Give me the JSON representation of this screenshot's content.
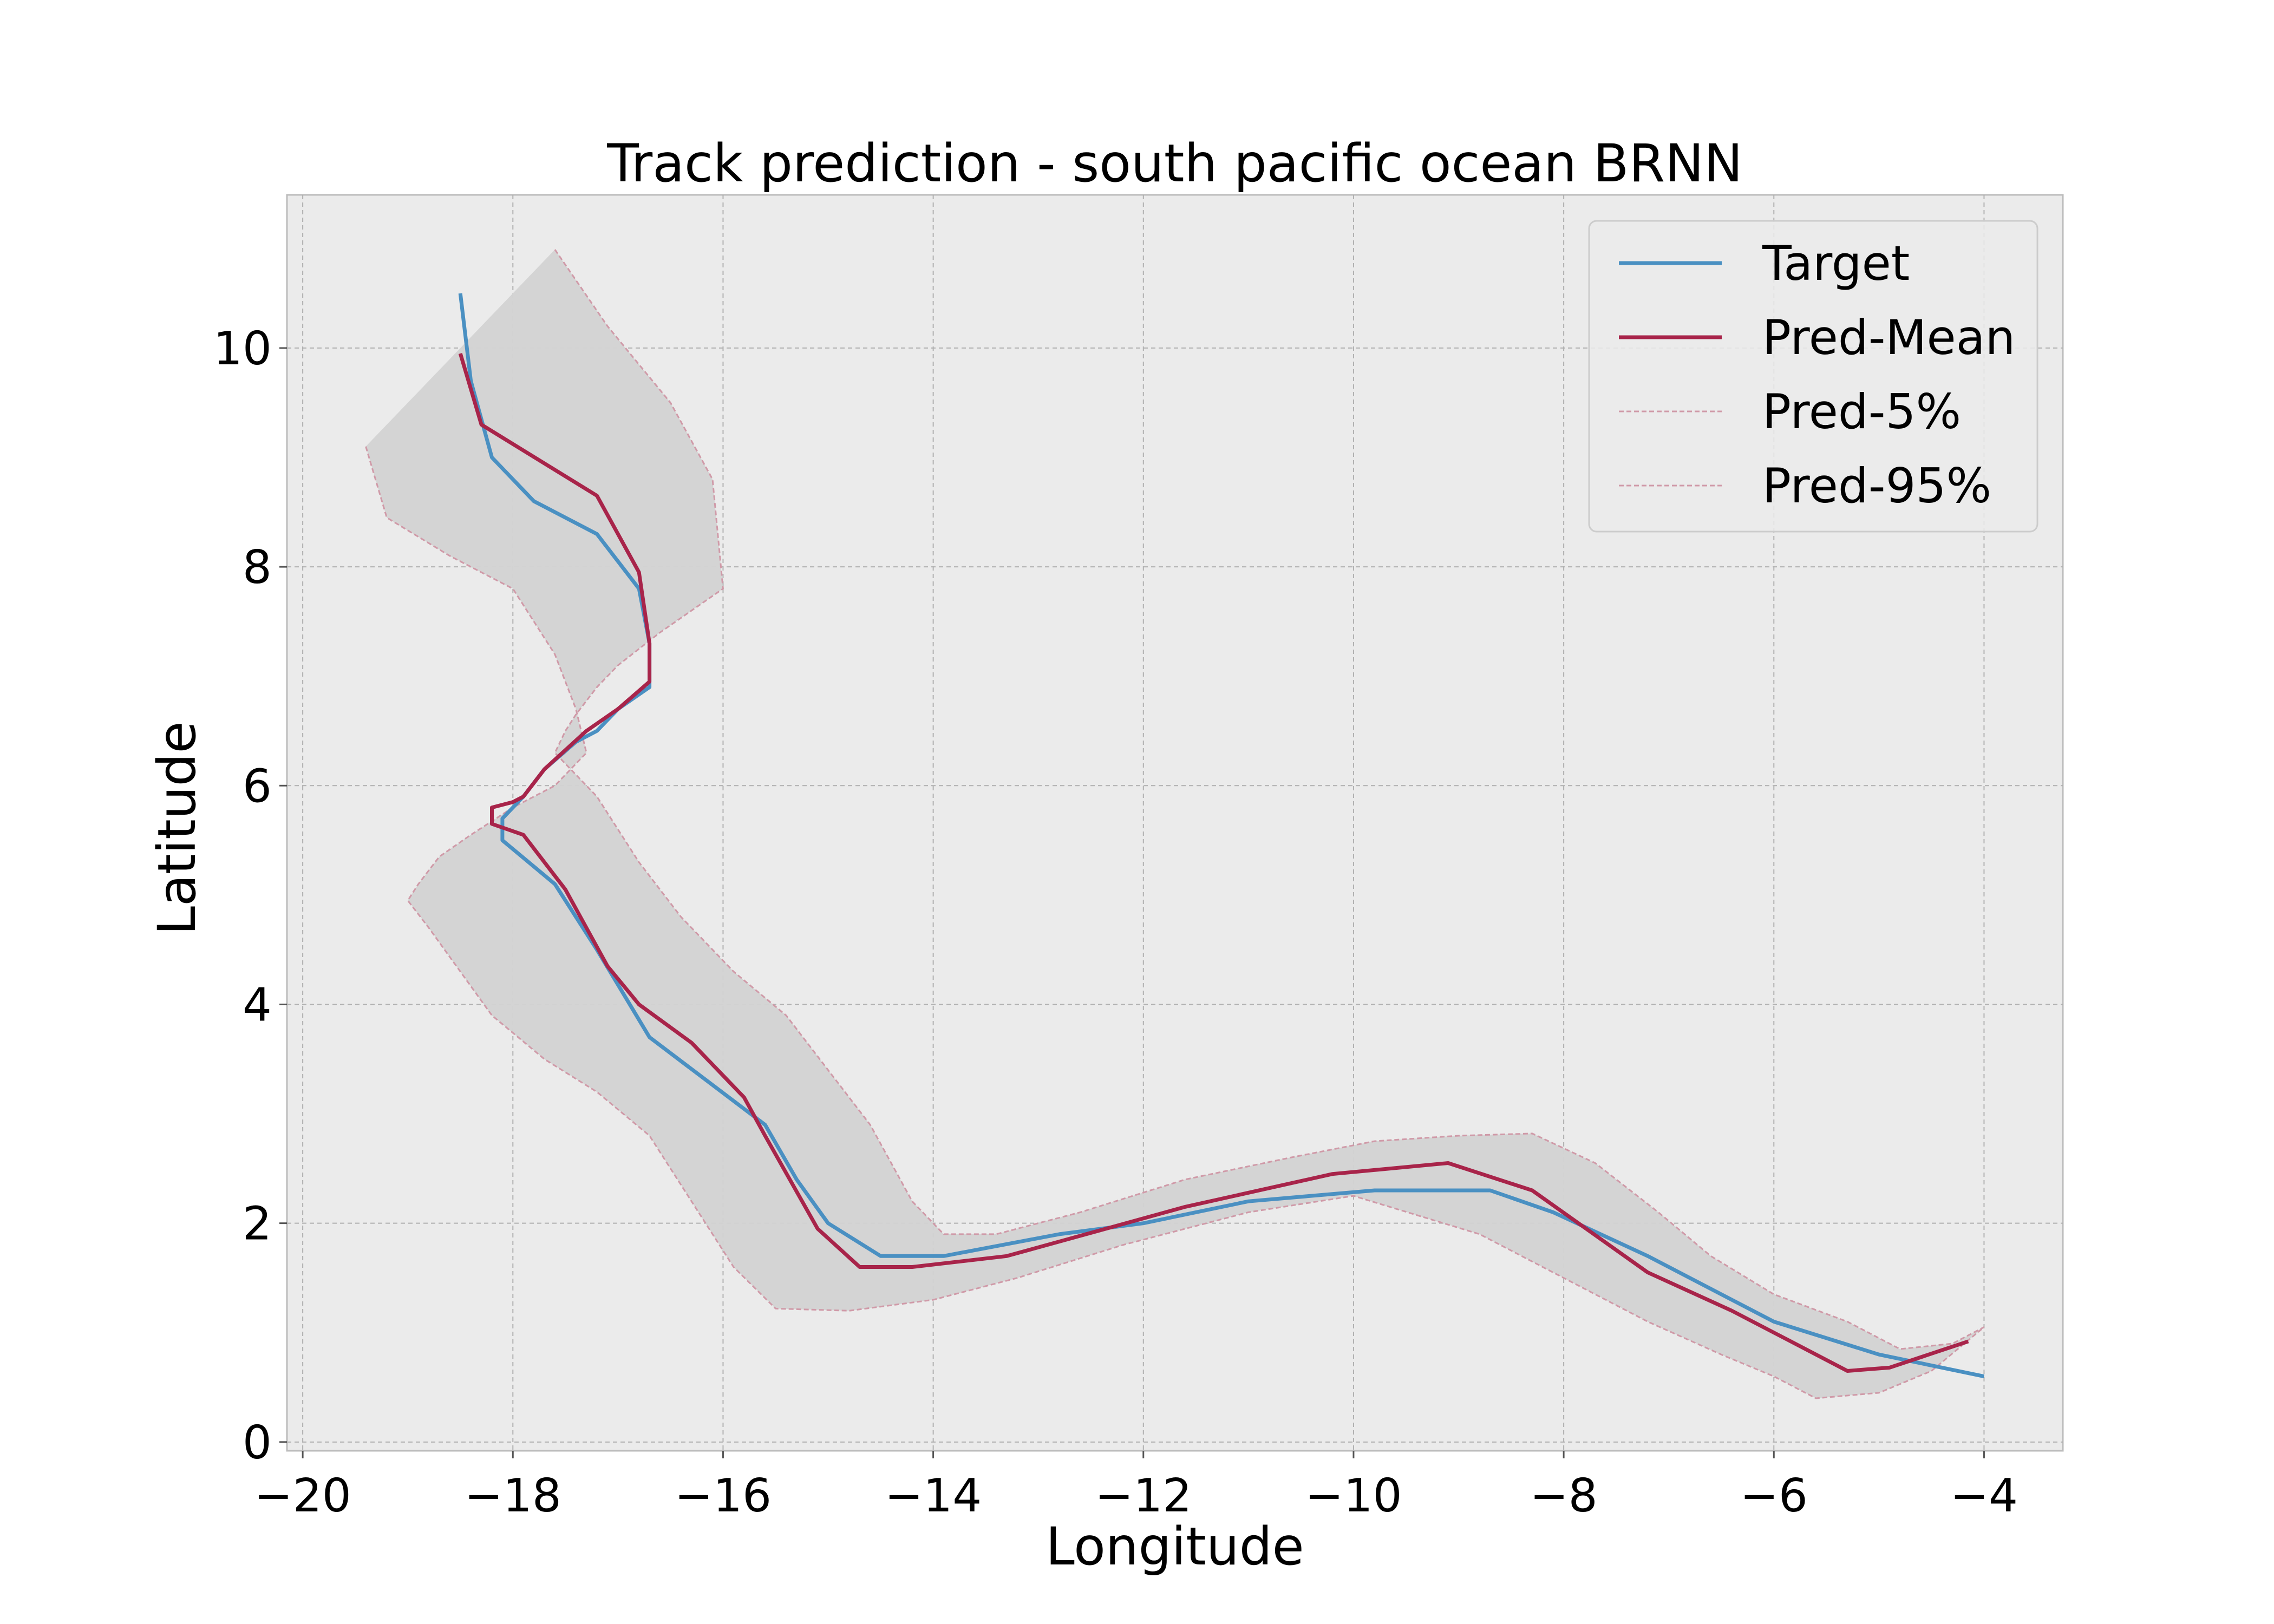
{
  "chart_data": {
    "type": "line",
    "title": "Track prediction - south pacific ocean BRNN",
    "xlabel": "Longitude",
    "ylabel": "Latitude",
    "xlim": [
      -20.15,
      -3.25
    ],
    "ylim": [
      -0.08,
      11.4
    ],
    "xticks": [
      -20,
      -18,
      -16,
      -14,
      -12,
      -10,
      -8,
      -6,
      -4
    ],
    "xtick_labels": [
      "−20",
      "−18",
      "−16",
      "−14",
      "−12",
      "−10",
      "−8",
      "−6",
      "−4"
    ],
    "yticks": [
      0,
      2,
      4,
      6,
      8,
      10
    ],
    "ytick_labels": [
      "0",
      "2",
      "4",
      "6",
      "8",
      "10"
    ],
    "grid": true,
    "legend_position": "top-right",
    "colors": {
      "target": "#4a90c2",
      "pred_mean": "#a8244a",
      "interval_edge": "#d09aa8",
      "interval_fill": "#d3d3d3",
      "axes_bg": "#ebebeb",
      "grid": "#b0b0b0"
    },
    "series": [
      {
        "name": "Target",
        "x": [
          -18.5,
          -18.4,
          -18.2,
          -17.8,
          -17.2,
          -16.8,
          -16.7,
          -16.7,
          -17.0,
          -17.2,
          -17.4,
          -17.7,
          -17.9,
          -18.1,
          -18.1,
          -17.6,
          -17.2,
          -16.7,
          -15.6,
          -15.3,
          -15.0,
          -14.5,
          -13.9,
          -12.8,
          -12.0,
          -11.0,
          -9.8,
          -8.7,
          -8.1,
          -7.2,
          -6.0,
          -5.0,
          -4.0
        ],
        "y": [
          10.5,
          9.7,
          9.0,
          8.6,
          8.3,
          7.8,
          7.3,
          6.9,
          6.7,
          6.5,
          6.4,
          6.15,
          5.9,
          5.7,
          5.5,
          5.1,
          4.5,
          3.7,
          2.9,
          2.4,
          2.0,
          1.7,
          1.7,
          1.9,
          2.0,
          2.2,
          2.3,
          2.3,
          2.1,
          1.7,
          1.1,
          0.8,
          0.6
        ]
      },
      {
        "name": "Pred-Mean",
        "x": [
          -18.5,
          -18.3,
          -17.2,
          -16.8,
          -16.7,
          -16.7,
          -17.0,
          -17.3,
          -17.7,
          -17.9,
          -18.0,
          -18.2,
          -18.2,
          -17.9,
          -17.7,
          -17.5,
          -17.3,
          -17.1,
          -16.8,
          -16.3,
          -15.8,
          -15.6,
          -15.1,
          -14.7,
          -14.2,
          -13.3,
          -11.6,
          -10.2,
          -9.1,
          -8.3,
          -7.2,
          -6.4,
          -5.9,
          -5.3,
          -4.9,
          -4.15
        ],
        "y": [
          9.95,
          9.3,
          8.65,
          7.95,
          7.3,
          6.95,
          6.7,
          6.5,
          6.15,
          5.9,
          5.85,
          5.8,
          5.65,
          5.55,
          5.3,
          5.05,
          4.7,
          4.35,
          4.0,
          3.65,
          3.15,
          2.8,
          1.95,
          1.6,
          1.6,
          1.7,
          2.15,
          2.45,
          2.55,
          2.3,
          1.55,
          1.2,
          0.95,
          0.65,
          0.68,
          0.92
        ]
      },
      {
        "name": "Pred-5%",
        "x": [
          -17.6,
          -17.1,
          -16.5,
          -16.1,
          -16.0,
          -16.3,
          -16.6,
          -17.0,
          -17.2,
          -17.4,
          -17.5,
          -17.6,
          -17.5,
          -17.2,
          -16.8,
          -16.4,
          -15.9,
          -15.4,
          -15.0,
          -14.6,
          -14.2,
          -13.9,
          -13.4,
          -12.6,
          -11.6,
          -10.6,
          -9.8,
          -9.0,
          -8.3,
          -7.7,
          -7.1,
          -6.6,
          -6.0,
          -5.3,
          -4.8,
          -4.3,
          -4.0
        ],
        "y": [
          10.9,
          10.2,
          9.5,
          8.8,
          7.8,
          7.6,
          7.4,
          7.1,
          6.9,
          6.65,
          6.5,
          6.3,
          6.2,
          5.9,
          5.3,
          4.8,
          4.3,
          3.9,
          3.4,
          2.9,
          2.2,
          1.9,
          1.9,
          2.1,
          2.4,
          2.6,
          2.75,
          2.8,
          2.82,
          2.55,
          2.1,
          1.7,
          1.35,
          1.1,
          0.85,
          0.9,
          1.05
        ]
      },
      {
        "name": "Pred-95%",
        "x": [
          -19.4,
          -19.2,
          -18.6,
          -18.0,
          -17.6,
          -17.4,
          -17.3,
          -17.6,
          -18.0,
          -18.4,
          -18.7,
          -18.9,
          -19.0,
          -18.8,
          -18.5,
          -18.2,
          -17.7,
          -17.2,
          -16.7,
          -16.3,
          -15.9,
          -15.5,
          -14.8,
          -14.0,
          -13.2,
          -12.2,
          -11.0,
          -10.0,
          -8.8,
          -8.0,
          -7.2,
          -6.5,
          -6.0,
          -5.6,
          -5.0,
          -4.5,
          -4.0
        ],
        "y": [
          9.1,
          8.45,
          8.1,
          7.8,
          7.2,
          6.7,
          6.3,
          6.0,
          5.8,
          5.55,
          5.35,
          5.1,
          4.95,
          4.7,
          4.3,
          3.9,
          3.5,
          3.2,
          2.8,
          2.2,
          1.6,
          1.22,
          1.2,
          1.3,
          1.5,
          1.8,
          2.1,
          2.25,
          1.9,
          1.5,
          1.1,
          0.8,
          0.6,
          0.4,
          0.45,
          0.65,
          1.05
        ]
      }
    ],
    "legend": [
      {
        "label": "Target",
        "style": "solid",
        "color": "#4a90c2"
      },
      {
        "label": "Pred-Mean",
        "style": "solid",
        "color": "#a8244a"
      },
      {
        "label": "Pred-5%",
        "style": "dashed",
        "color": "#d09aa8"
      },
      {
        "label": "Pred-95%",
        "style": "dashed",
        "color": "#d09aa8"
      }
    ]
  }
}
